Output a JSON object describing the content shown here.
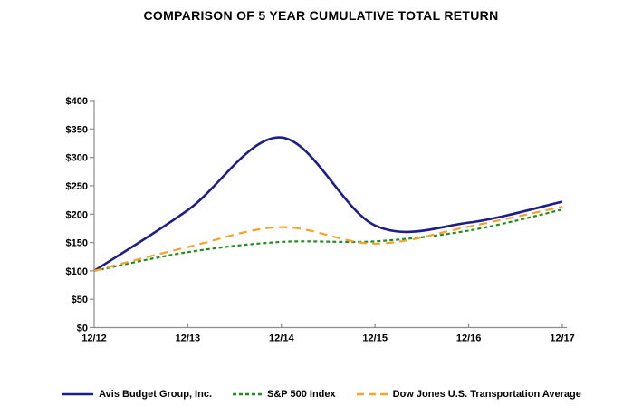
{
  "title": "COMPARISON OF 5 YEAR CUMULATIVE TOTAL RETURN",
  "chart_data": {
    "type": "line",
    "title": "COMPARISON OF 5 YEAR CUMULATIVE TOTAL RETURN",
    "categories": [
      "12/12",
      "12/13",
      "12/14",
      "12/15",
      "12/16",
      "12/17"
    ],
    "series": [
      {
        "name": "Avis Budget Group, Inc.",
        "color": "#1E1E87",
        "dash": "solid",
        "values": [
          100,
          207,
          335,
          180,
          185,
          222
        ]
      },
      {
        "name": "S&P 500 Index",
        "color": "#228B22",
        "dash": "short-dash",
        "values": [
          100,
          133,
          151,
          152,
          171,
          208
        ]
      },
      {
        "name": "Dow Jones U.S. Transportation Average",
        "color": "#F5A32A",
        "dash": "long-dash",
        "values": [
          100,
          142,
          177,
          148,
          178,
          213
        ]
      }
    ],
    "ylim": [
      0,
      400
    ],
    "y_tick_step": 50,
    "y_tick_labels": [
      "$0",
      "$50",
      "$100",
      "$150",
      "$200",
      "$250",
      "$300",
      "$350",
      "$400"
    ],
    "x_tick_labels": [
      "12/12",
      "12/13",
      "12/14",
      "12/15",
      "12/16",
      "12/17"
    ],
    "grid": false,
    "legend_position": "bottom",
    "line_smoothing": true,
    "axis_color": "#8C8C8C",
    "label_color": "#000000",
    "background_color": "#FFFFFF"
  }
}
